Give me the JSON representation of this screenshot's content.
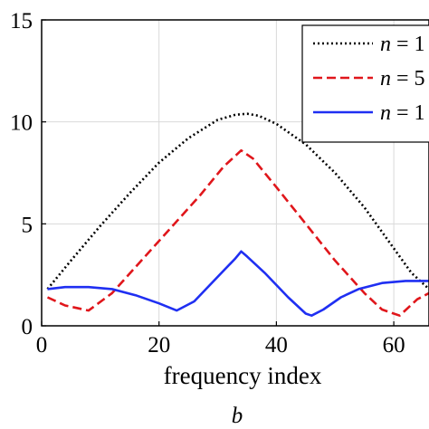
{
  "chart_data": {
    "type": "line",
    "xlabel": "frequency index",
    "ylabel": "",
    "caption": "b",
    "xlim": [
      0,
      66
    ],
    "ylim": [
      0,
      15
    ],
    "xticks": [
      "0",
      "20",
      "40",
      "60"
    ],
    "yticks": [
      "0",
      "5",
      "10",
      "15"
    ],
    "grid": true,
    "legend": {
      "placement": "top-right",
      "entries": [
        {
          "var": "n",
          "eq": " = ",
          "num": "1"
        },
        {
          "var": "n",
          "eq": " = ",
          "num": "5"
        },
        {
          "var": "n",
          "eq": " = ",
          "num": "1"
        }
      ]
    },
    "series": [
      {
        "color": "#000000",
        "style": "dotted",
        "x": [
          1,
          5,
          10,
          15,
          20,
          25,
          30,
          33,
          35,
          37,
          40,
          45,
          50,
          55,
          60,
          63,
          66
        ],
        "y": [
          1.8,
          3.2,
          4.9,
          6.5,
          8.0,
          9.2,
          10.1,
          10.35,
          10.4,
          10.3,
          9.9,
          8.9,
          7.5,
          5.8,
          3.8,
          2.6,
          1.8
        ]
      },
      {
        "color": "#e0161b",
        "style": "dashed",
        "x": [
          1,
          4,
          8,
          12,
          17,
          22,
          27,
          31,
          34,
          36,
          40,
          45,
          50,
          55,
          58,
          61,
          64,
          66
        ],
        "y": [
          1.4,
          1.0,
          0.75,
          1.6,
          3.2,
          4.8,
          6.4,
          7.8,
          8.6,
          8.2,
          6.8,
          5.0,
          3.2,
          1.6,
          0.8,
          0.5,
          1.3,
          1.6
        ]
      },
      {
        "color": "#1f2ff2",
        "style": "solid",
        "x": [
          1,
          4,
          8,
          12,
          16,
          20,
          23,
          26,
          30,
          33,
          34,
          35,
          38,
          42,
          45,
          46,
          48,
          51,
          54,
          58,
          62,
          66
        ],
        "y": [
          1.8,
          1.9,
          1.9,
          1.8,
          1.5,
          1.1,
          0.75,
          1.2,
          2.4,
          3.3,
          3.65,
          3.4,
          2.6,
          1.4,
          0.6,
          0.5,
          0.8,
          1.4,
          1.8,
          2.1,
          2.2,
          2.2
        ]
      }
    ]
  }
}
